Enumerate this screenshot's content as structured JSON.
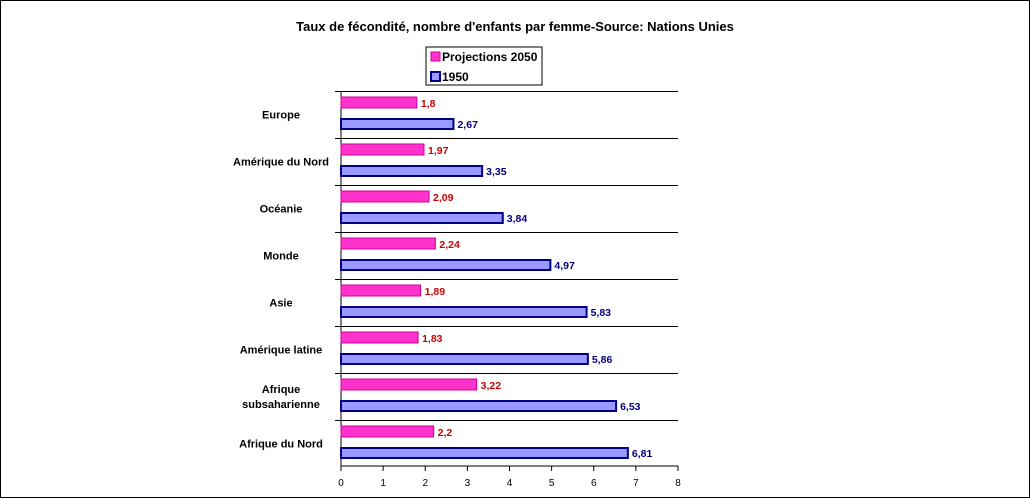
{
  "chart_data": {
    "type": "bar",
    "orientation": "horizontal",
    "title": "Taux de fécondité, nombre d'enfants par femme-Source: Nations Unies",
    "categories": [
      [
        "Europe"
      ],
      [
        "Amérique du Nord"
      ],
      [
        "Océanie"
      ],
      [
        "Monde"
      ],
      [
        "Asie"
      ],
      [
        "Amérique latine"
      ],
      [
        "Afrique",
        "subsaharienne"
      ],
      [
        "Afrique du Nord"
      ]
    ],
    "series": [
      {
        "name": "Projections 2050",
        "values": [
          1.8,
          1.97,
          2.09,
          2.24,
          1.89,
          1.83,
          3.22,
          2.2
        ],
        "labels": [
          "1,8",
          "1,97",
          "2,09",
          "2,24",
          "1,89",
          "1,83",
          "3,22",
          "2,2"
        ],
        "color": "#ff33cc",
        "label_color": "#cc0000"
      },
      {
        "name": "1950",
        "values": [
          2.67,
          3.35,
          3.84,
          4.97,
          5.83,
          5.86,
          6.53,
          6.81
        ],
        "labels": [
          "2,67",
          "3,35",
          "3,84",
          "4,97",
          "5,83",
          "5,86",
          "6,53",
          "6,81"
        ],
        "color": "#9999ff",
        "label_color": "#000080"
      }
    ],
    "xlim": [
      0,
      8
    ],
    "xticks": [
      "0",
      "1",
      "2",
      "3",
      "4",
      "5",
      "6",
      "7",
      "8"
    ],
    "grid": "horizontal separators between categories",
    "legend_position": "top-center"
  }
}
